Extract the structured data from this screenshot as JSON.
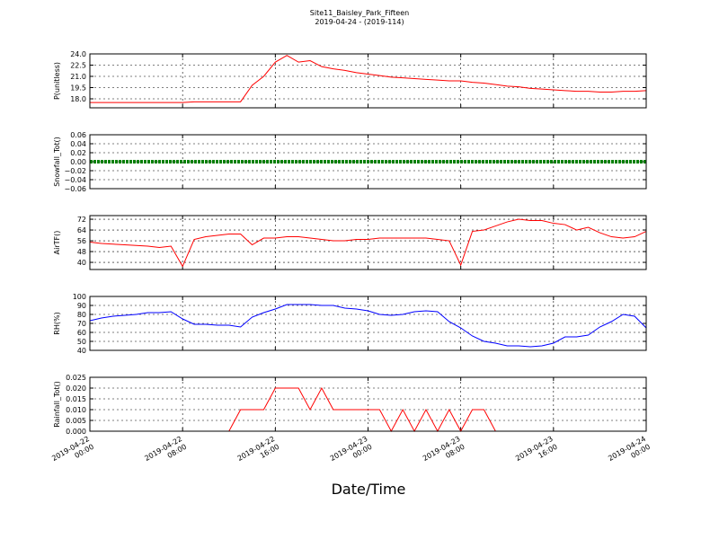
{
  "chart_data": [
    {
      "type": "line",
      "title": "Site11_Baisley_Park_Fifteen",
      "subtitle": "2019-04-24 - (2019-114)",
      "ylabel": "P(unitless)",
      "x": [
        0,
        1,
        2,
        3,
        4,
        5,
        6,
        7,
        8,
        9,
        10,
        11,
        12,
        13,
        14,
        15,
        16,
        17,
        18,
        19,
        20,
        21,
        22,
        23,
        24,
        25,
        26,
        27,
        28,
        29,
        30,
        31,
        32,
        33,
        34,
        35,
        36,
        37,
        38,
        39,
        40,
        41,
        42,
        43,
        44,
        45,
        46,
        47,
        48
      ],
      "xlim": [
        0,
        48
      ],
      "series": [
        {
          "name": "P",
          "color": "#ff0000",
          "values": [
            17.5,
            17.5,
            17.5,
            17.5,
            17.5,
            17.5,
            17.5,
            17.5,
            17.5,
            17.6,
            17.6,
            17.6,
            17.6,
            17.6,
            19.8,
            21.0,
            22.9,
            23.8,
            22.9,
            23.1,
            22.3,
            22.0,
            21.8,
            21.5,
            21.3,
            21.1,
            20.9,
            20.8,
            20.7,
            20.6,
            20.5,
            20.4,
            20.4,
            20.2,
            20.1,
            19.9,
            19.7,
            19.6,
            19.4,
            19.3,
            19.2,
            19.1,
            19.0,
            19.0,
            18.9,
            18.9,
            19.0,
            19.0,
            19.1
          ]
        }
      ],
      "ylim": [
        16.8,
        24.0
      ],
      "yticks": [
        {
          "value": 18,
          "label": "18.0"
        },
        19.5,
        {
          "value": 21,
          "label": "21.0"
        },
        22.5,
        {
          "value": 24,
          "label": "24.0"
        }
      ],
      "grid": true
    },
    {
      "type": "line",
      "ylabel": "Snowfall_Tot()",
      "x": [
        0,
        1,
        2,
        3,
        4,
        5,
        6,
        7,
        8,
        9,
        10,
        11,
        12,
        13,
        14,
        15,
        16,
        17,
        18,
        19,
        20,
        21,
        22,
        23,
        24,
        25,
        26,
        27,
        28,
        29,
        30,
        31,
        32,
        33,
        34,
        35,
        36,
        37,
        38,
        39,
        40,
        41,
        42,
        43,
        44,
        45,
        46,
        47,
        48
      ],
      "xlim": [
        0,
        48
      ],
      "series": [
        {
          "name": "Snowfall_Tot",
          "color": "#008000",
          "values": [
            0,
            0,
            0,
            0,
            0,
            0,
            0,
            0,
            0,
            0,
            0,
            0,
            0,
            0,
            0,
            0,
            0,
            0,
            0,
            0,
            0,
            0,
            0,
            0,
            0,
            0,
            0,
            0,
            0,
            0,
            0,
            0,
            0,
            0,
            0,
            0,
            0,
            0,
            0,
            0,
            0,
            0,
            0,
            0,
            0,
            0,
            0,
            0,
            0
          ]
        }
      ],
      "ylim": [
        -0.06,
        0.06
      ],
      "yticks": [
        {
          "value": -0.06,
          "label": "−0.06"
        },
        {
          "value": -0.04,
          "label": "−0.04"
        },
        {
          "value": -0.02,
          "label": "−0.02"
        },
        {
          "value": 0,
          "label": "0.00"
        },
        {
          "value": 0.02,
          "label": "0.02"
        },
        {
          "value": 0.04,
          "label": "0.04"
        },
        {
          "value": 0.06,
          "label": "0.06"
        }
      ],
      "grid": true
    },
    {
      "type": "line",
      "ylabel": "AirTF()",
      "x": [
        0,
        1,
        2,
        3,
        4,
        5,
        6,
        7,
        8,
        9,
        10,
        11,
        12,
        13,
        14,
        15,
        16,
        17,
        18,
        19,
        20,
        21,
        22,
        23,
        24,
        25,
        26,
        27,
        28,
        29,
        30,
        31,
        32,
        33,
        34,
        35,
        36,
        37,
        38,
        39,
        40,
        41,
        42,
        43,
        44,
        45,
        46,
        47,
        48
      ],
      "xlim": [
        0,
        48
      ],
      "series": [
        {
          "name": "AirTF",
          "color": "#ff0000",
          "values": [
            55,
            54,
            53.5,
            53,
            52.5,
            52,
            51,
            52,
            37,
            57,
            59,
            60,
            61,
            61,
            53,
            58,
            58,
            59,
            59,
            58,
            57,
            56,
            56,
            57,
            57,
            58,
            58,
            58,
            58,
            58,
            57,
            56,
            38,
            63,
            64,
            67,
            70,
            72,
            71,
            71,
            69,
            68,
            64,
            66,
            62,
            59,
            58,
            59,
            63
          ]
        }
      ],
      "ylim": [
        34.7,
        74.7
      ],
      "yticks": [
        40,
        48,
        56,
        64,
        72
      ],
      "grid": true
    },
    {
      "type": "line",
      "ylabel": "RH(%)",
      "x": [
        0,
        1,
        2,
        3,
        4,
        5,
        6,
        7,
        8,
        9,
        10,
        11,
        12,
        13,
        14,
        15,
        16,
        17,
        18,
        19,
        20,
        21,
        22,
        23,
        24,
        25,
        26,
        27,
        28,
        29,
        30,
        31,
        32,
        33,
        34,
        35,
        36,
        37,
        38,
        39,
        40,
        41,
        42,
        43,
        44,
        45,
        46,
        47,
        48
      ],
      "xlim": [
        0,
        48
      ],
      "series": [
        {
          "name": "RH",
          "color": "#0000ff",
          "values": [
            73,
            76,
            78,
            79,
            80,
            82,
            82,
            83,
            75,
            69,
            69,
            68,
            68,
            66,
            77,
            82,
            86,
            91,
            91,
            91,
            90,
            90,
            87,
            86,
            84,
            80,
            79,
            80,
            83,
            84,
            83,
            72,
            65,
            56,
            50,
            48,
            45,
            45,
            44,
            45,
            48,
            55,
            55,
            57,
            66,
            72,
            80,
            78,
            65
          ]
        }
      ],
      "ylim": [
        40,
        100
      ],
      "yticks": [
        40,
        50,
        60,
        70,
        80,
        90,
        100
      ],
      "grid": true
    },
    {
      "type": "line",
      "ylabel": "Rainfall_Tot()",
      "xlabel": "Date/Time",
      "x": [
        0,
        1,
        2,
        3,
        4,
        5,
        6,
        7,
        8,
        9,
        10,
        11,
        12,
        13,
        14,
        15,
        16,
        17,
        18,
        19,
        20,
        21,
        22,
        23,
        24,
        25,
        26,
        27,
        28,
        29,
        30,
        31,
        32,
        33,
        34,
        35,
        36,
        37,
        38,
        39,
        40,
        41,
        42,
        43,
        44,
        45,
        46,
        47,
        48
      ],
      "xlim": [
        0,
        48
      ],
      "xticks": [
        {
          "value": 0,
          "label": "2019-04-22\n00:00"
        },
        {
          "value": 8,
          "label": "2019-04-22\n08:00"
        },
        {
          "value": 16,
          "label": "2019-04-22\n16:00"
        },
        {
          "value": 24,
          "label": "2019-04-23\n00:00"
        },
        {
          "value": 32,
          "label": "2019-04-23\n08:00"
        },
        {
          "value": 40,
          "label": "2019-04-23\n16:00"
        },
        {
          "value": 48,
          "label": "2019-04-24\n00:00"
        }
      ],
      "series": [
        {
          "name": "Rainfall_Tot",
          "color": "#ff0000",
          "values": [
            0,
            0,
            0,
            0,
            0,
            0,
            0,
            0,
            0,
            0,
            0,
            0,
            0,
            0.01,
            0.01,
            0.01,
            0.02,
            0.02,
            0.02,
            0.01,
            0.02,
            0.01,
            0.01,
            0.01,
            0.01,
            0.01,
            0,
            0.01,
            0,
            0.01,
            0,
            0.01,
            0,
            0.01,
            0.01,
            0,
            0,
            0,
            0,
            0,
            0,
            0,
            0,
            0,
            0,
            0,
            0,
            0,
            0
          ]
        }
      ],
      "ylim": [
        0,
        0.025
      ],
      "yticks": [
        {
          "value": 0,
          "label": "0.000"
        },
        {
          "value": 0.005,
          "label": "0.005"
        },
        {
          "value": 0.01,
          "label": "0.010"
        },
        {
          "value": 0.015,
          "label": "0.015"
        },
        {
          "value": 0.02,
          "label": "0.020"
        },
        {
          "value": 0.025,
          "label": "0.025"
        }
      ],
      "grid": true
    }
  ]
}
